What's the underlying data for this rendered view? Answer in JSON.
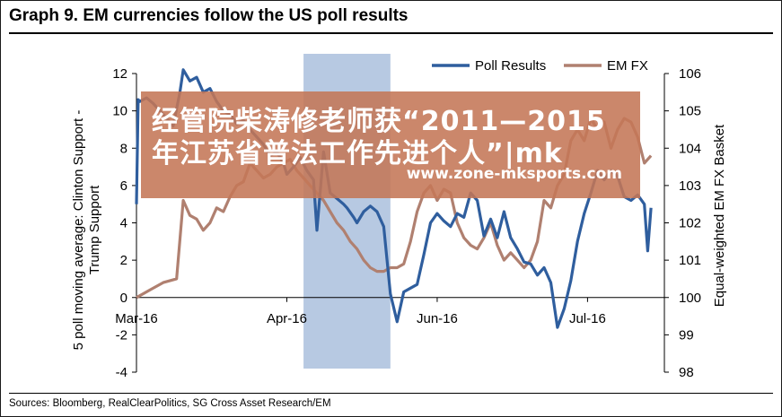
{
  "title": "Graph 9. EM currencies follow the US poll results",
  "source": "Sources: Bloomberg, RealClearPolitics,  SG Cross Asset Research/EM",
  "overlay": {
    "line1": "经管院柴涛修老师获“2011—2015",
    "line2": "年江苏省普法工作先进个人”|mk",
    "line3": "www.zone-mksports.com"
  },
  "colors": {
    "poll": "#2f5e9e",
    "emfx": "#b08070",
    "shade": "#b7c9e2",
    "overlay": "#c47656"
  },
  "chart_data": {
    "type": "line",
    "title": "Graph 9. EM currencies follow the US poll results",
    "x_tick_labels": [
      "Mar-16",
      "Apr-16",
      "Jun-16",
      "Jul-16"
    ],
    "x_tick_days": [
      0,
      45,
      90,
      135
    ],
    "xlim_days": [
      0,
      158
    ],
    "ylabel_left": "5 poll moving average: Clinton Support - Trump Support",
    "ylabel_left_lines": [
      "5 poll moving average: Clinton Support -",
      "Trump Support"
    ],
    "ylabel_right": "Equal-weighted EM FX Basket",
    "ylim_left": [
      -4,
      12
    ],
    "yticks_left": [
      -4,
      -2,
      0,
      2,
      4,
      6,
      8,
      10,
      12
    ],
    "ylim_right": [
      98,
      106
    ],
    "yticks_right": [
      98,
      99,
      100,
      101,
      102,
      103,
      104,
      105,
      106
    ],
    "shaded_region_days": [
      50,
      76
    ],
    "legend": {
      "placement": "top-right",
      "entries": [
        "Poll Results",
        "EM FX"
      ]
    },
    "series": [
      {
        "name": "Poll Results",
        "axis": "left",
        "x": [
          0,
          0.5,
          1,
          3,
          5,
          8,
          11,
          13,
          14,
          16,
          18,
          20,
          22,
          24,
          26,
          28,
          30,
          32,
          34,
          36,
          38,
          40,
          42,
          44,
          45,
          47,
          49,
          51,
          53,
          54,
          56,
          58,
          60,
          62,
          63,
          65,
          66,
          68,
          70,
          72,
          74,
          76,
          78,
          80,
          82,
          84,
          86,
          88,
          90,
          92,
          94,
          96,
          98,
          100,
          102,
          104,
          106,
          108,
          110,
          112,
          114,
          116,
          118,
          120,
          122,
          124,
          126,
          128,
          130,
          132,
          134,
          136,
          138,
          140,
          142,
          144,
          146,
          148,
          150,
          152,
          153,
          154
        ],
        "y": [
          5.0,
          10.6,
          10.5,
          10.7,
          10.4,
          9.8,
          9.2,
          11.0,
          12.2,
          11.6,
          11.8,
          11.0,
          11.2,
          10.5,
          10.0,
          9.8,
          9.3,
          9.5,
          9.0,
          8.6,
          8.2,
          7.6,
          7.8,
          7.2,
          6.6,
          7.0,
          7.5,
          6.8,
          6.3,
          3.6,
          7.8,
          5.6,
          5.3,
          5.0,
          4.8,
          4.3,
          4.0,
          4.6,
          4.9,
          4.6,
          3.8,
          0.2,
          -1.3,
          0.3,
          0.5,
          0.7,
          2.3,
          4.0,
          4.5,
          4.1,
          3.8,
          4.5,
          4.3,
          5.6,
          5.2,
          3.3,
          4.2,
          3.2,
          4.6,
          3.2,
          2.6,
          1.9,
          1.8,
          1.2,
          1.6,
          0.8,
          -1.6,
          -0.6,
          0.9,
          3.0,
          4.5,
          5.6,
          6.8,
          6.3,
          6.8,
          6.5,
          5.4,
          5.2,
          5.5,
          5.0,
          2.5,
          4.8
        ]
      },
      {
        "name": "EM FX",
        "axis": "right",
        "x": [
          0,
          4,
          8,
          12,
          14,
          16,
          18,
          20,
          22,
          24,
          26,
          28,
          30,
          32,
          34,
          36,
          38,
          40,
          42,
          44,
          46,
          48,
          50,
          52,
          54,
          56,
          58,
          60,
          62,
          64,
          66,
          68,
          70,
          72,
          74,
          76,
          78,
          80,
          82,
          84,
          86,
          88,
          90,
          92,
          94,
          96,
          98,
          100,
          102,
          104,
          106,
          108,
          110,
          112,
          114,
          116,
          118,
          120,
          122,
          124,
          126,
          128,
          130,
          132,
          134,
          136,
          138,
          140,
          142,
          144,
          146,
          148,
          150,
          152,
          154
        ],
        "y": [
          100.0,
          100.2,
          100.4,
          100.5,
          102.6,
          102.2,
          102.1,
          101.8,
          102.0,
          102.4,
          102.3,
          102.7,
          103.0,
          103.1,
          103.6,
          103.4,
          103.2,
          103.3,
          103.5,
          103.6,
          103.7,
          103.4,
          103.2,
          103.0,
          102.8,
          102.6,
          102.3,
          102.0,
          101.8,
          101.5,
          101.3,
          101.0,
          100.8,
          100.7,
          100.7,
          100.8,
          100.8,
          100.9,
          101.5,
          102.3,
          102.8,
          103.0,
          102.6,
          102.9,
          102.8,
          102.0,
          101.6,
          101.4,
          101.3,
          101.6,
          102.0,
          101.4,
          101.0,
          101.2,
          101.0,
          100.8,
          101.0,
          101.5,
          102.6,
          102.4,
          103.0,
          103.3,
          104.2,
          104.5,
          104.2,
          104.8,
          104.5,
          104.7,
          104.0,
          104.5,
          104.8,
          104.7,
          104.3,
          103.6,
          103.8
        ]
      }
    ]
  }
}
